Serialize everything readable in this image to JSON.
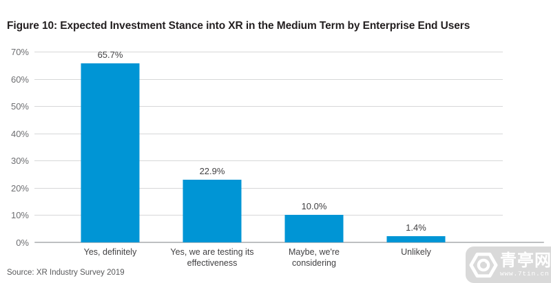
{
  "figure": {
    "title": "Figure 10: Expected Investment Stance into XR in the Medium Term by Enterprise End Users",
    "source": "Source: XR Industry Survey 2019"
  },
  "chart_data": {
    "type": "bar",
    "title": "Figure 10: Expected Investment Stance into XR in the Medium Term by Enterprise End Users",
    "categories": [
      "Yes, definitely",
      "Yes, we are testing its\neffectiveness",
      "Maybe, we're\nconsidering",
      "Unlikely"
    ],
    "values": [
      65.7,
      22.9,
      10.0,
      1.4
    ],
    "value_labels": [
      "65.7%",
      "22.9%",
      "10.0%",
      "1.4%"
    ],
    "xlabel": "",
    "ylabel": "",
    "ylim": [
      0,
      70
    ],
    "ytick_labels": [
      "70%",
      "60%",
      "50%",
      "40%",
      "30%",
      "20%",
      "10%",
      "0%"
    ],
    "grid": true,
    "legend": "none",
    "bar_color": "#0095d5",
    "source": "Source: XR Industry Survey 2019"
  },
  "colors": {
    "bar": "#0095d5",
    "title_text": "#231f20",
    "axis_label": "#6d6e71",
    "value_label": "#414042",
    "gridline": "#d6d7d8",
    "axis_line": "#bdbfc1",
    "watermark_bg": "#d6d6d6"
  },
  "watermark": {
    "icon": "hexagon-lens-icon",
    "text": "青亭网",
    "url": "www.7tin.cn"
  }
}
